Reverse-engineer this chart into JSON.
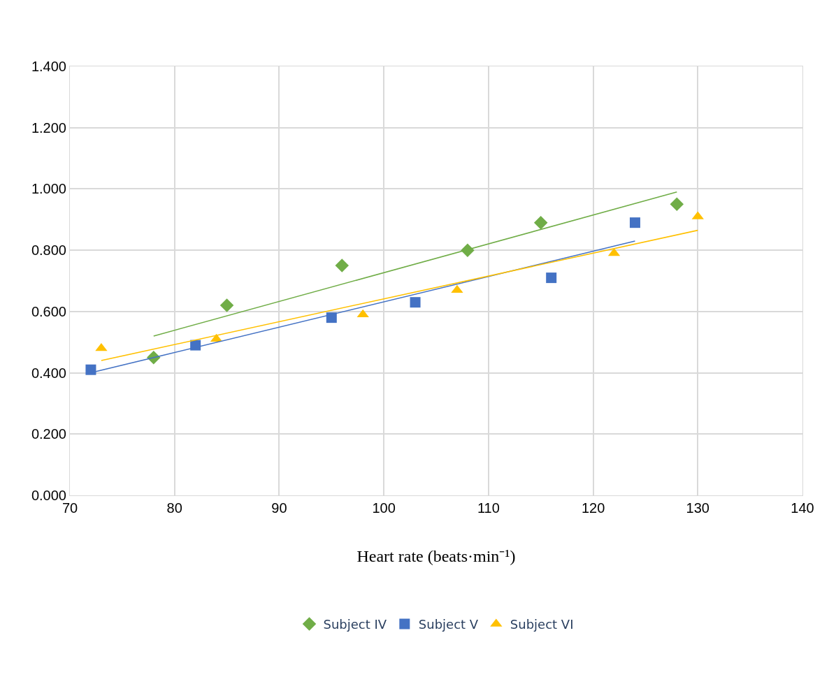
{
  "chart_data": {
    "type": "scatter",
    "xlabel": "Heart rate (beats·min⁻¹)",
    "xlim": [
      70,
      140
    ],
    "xticks": [
      70,
      80,
      90,
      100,
      110,
      120,
      130,
      140
    ],
    "ylim": [
      0,
      1.4
    ],
    "yticks": [
      {
        "value": 0,
        "label": "0.000"
      },
      {
        "value": 0.2,
        "label": "0.200"
      },
      {
        "value": 0.4,
        "label": "0.400"
      },
      {
        "value": 0.6,
        "label": "0.600"
      },
      {
        "value": 0.8,
        "label": "0.800"
      },
      {
        "value": 1.0,
        "label": "1.000"
      },
      {
        "value": 1.2,
        "label": "1.200"
      },
      {
        "value": 1.4,
        "label": "1.400"
      }
    ],
    "grid": true,
    "legend": "bottom",
    "series": [
      {
        "name": "Subject IV",
        "color": "#70ad47",
        "marker": "diamond",
        "x": [
          78,
          85,
          96,
          108,
          115,
          128
        ],
        "values": [
          0.45,
          0.62,
          0.75,
          0.8,
          0.89,
          0.95
        ]
      },
      {
        "name": "Subject V",
        "color": "#4472c4",
        "marker": "square",
        "x": [
          72,
          82,
          95,
          103,
          116,
          124
        ],
        "values": [
          0.41,
          0.49,
          0.58,
          0.63,
          0.71,
          0.89
        ]
      },
      {
        "name": "Subject VI",
        "color": "#ffc000",
        "marker": "triangle",
        "x": [
          73,
          84,
          98,
          107,
          122,
          130
        ],
        "values": [
          0.48,
          0.51,
          0.59,
          0.67,
          0.79,
          0.91
        ]
      },
      {
        "type": "line",
        "color": "#70ad47",
        "x": [
          78,
          128
        ],
        "values": [
          0.52,
          0.99
        ]
      },
      {
        "type": "line",
        "color": "#4472c4",
        "x": [
          72,
          124
        ],
        "values": [
          0.4,
          0.83
        ]
      },
      {
        "type": "line",
        "color": "#ffc000",
        "x": [
          73,
          130
        ],
        "values": [
          0.44,
          0.865
        ]
      }
    ]
  }
}
